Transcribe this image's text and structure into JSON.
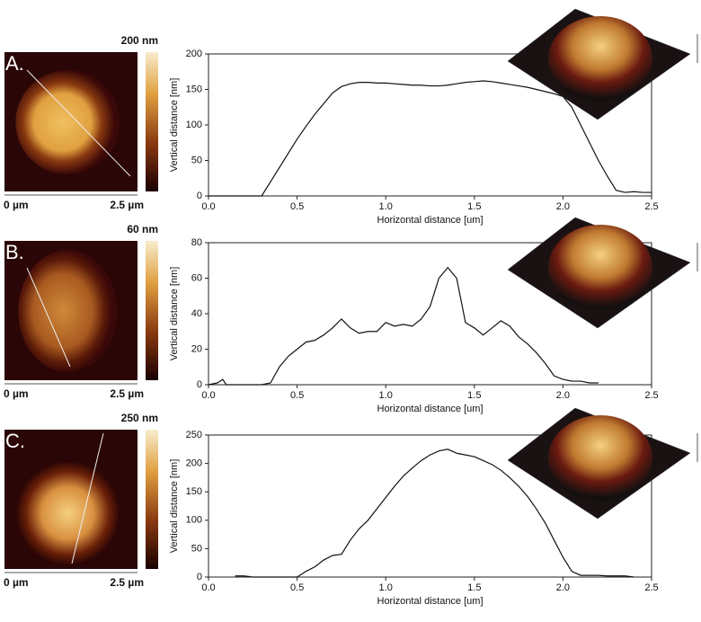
{
  "chart_data": [
    {
      "type": "line",
      "panel_label": "A.",
      "scale_max_label": "200 nm",
      "scale_x_labels": [
        "0 µm",
        "2.5 µm"
      ],
      "x_label": "Horizontal distance [um]",
      "y_label": "Vertical distance [nm]",
      "xlim": [
        0,
        2.5
      ],
      "ylim": [
        0,
        200
      ],
      "xticks": [
        {
          "value": 0,
          "label": "0.0"
        },
        0.5,
        {
          "value": 1,
          "label": "1.0"
        },
        1.5,
        {
          "value": 2,
          "label": "2.0"
        },
        2.5
      ],
      "yticks": [
        0,
        50,
        100,
        150,
        200
      ],
      "x": [
        0,
        0.05,
        0.1,
        0.15,
        0.2,
        0.25,
        0.3,
        0.35,
        0.4,
        0.45,
        0.5,
        0.55,
        0.6,
        0.65,
        0.7,
        0.75,
        0.8,
        0.85,
        0.9,
        0.95,
        1,
        1.05,
        1.1,
        1.15,
        1.2,
        1.25,
        1.3,
        1.35,
        1.4,
        1.45,
        1.5,
        1.55,
        1.6,
        1.65,
        1.7,
        1.75,
        1.8,
        1.85,
        1.9,
        1.95,
        2,
        2.05,
        2.1,
        2.15,
        2.2,
        2.25,
        2.3,
        2.35,
        2.4,
        2.45,
        2.5
      ],
      "series": [
        {
          "color": "#111111",
          "values": [
            0,
            0,
            0,
            0,
            0,
            0,
            0,
            20,
            40,
            60,
            80,
            98,
            115,
            130,
            145,
            154,
            158,
            160,
            160,
            159,
            159,
            158,
            157,
            156,
            156,
            155,
            155,
            156,
            158,
            160,
            161,
            162,
            161,
            159,
            157,
            155,
            153,
            150,
            147,
            144,
            140,
            125,
            100,
            75,
            50,
            28,
            8,
            5,
            6,
            5,
            5
          ]
        }
      ]
    },
    {
      "type": "line",
      "panel_label": "B.",
      "scale_max_label": "60 nm",
      "scale_x_labels": [
        "0 µm",
        "2.5 µm"
      ],
      "x_label": "Horizontal distance [um]",
      "y_label": "Vertical distance [nm]",
      "xlim": [
        0,
        2.5
      ],
      "ylim": [
        0,
        80
      ],
      "xticks": [
        {
          "value": 0,
          "label": "0.0"
        },
        0.5,
        {
          "value": 1,
          "label": "1.0"
        },
        1.5,
        {
          "value": 2,
          "label": "2.0"
        },
        2.5
      ],
      "yticks": [
        0,
        20,
        40,
        60,
        80
      ],
      "x": [
        0,
        0.05,
        0.08,
        0.1,
        0.15,
        0.2,
        0.25,
        0.3,
        0.35,
        0.4,
        0.45,
        0.5,
        0.55,
        0.6,
        0.65,
        0.7,
        0.75,
        0.8,
        0.85,
        0.9,
        0.95,
        1,
        1.05,
        1.1,
        1.15,
        1.2,
        1.25,
        1.3,
        1.35,
        1.4,
        1.45,
        1.5,
        1.55,
        1.6,
        1.65,
        1.7,
        1.75,
        1.8,
        1.85,
        1.9,
        1.95,
        2,
        2.05,
        2.1,
        2.15,
        2.2
      ],
      "series": [
        {
          "color": "#111111",
          "values": [
            0,
            1,
            3,
            0,
            0,
            0,
            0,
            0,
            1,
            10,
            16,
            20,
            24,
            25,
            28,
            32,
            37,
            32,
            29,
            30,
            30,
            35,
            33,
            34,
            33,
            37,
            44,
            60,
            66,
            60,
            35,
            32,
            28,
            32,
            36,
            33,
            27,
            23,
            18,
            12,
            5,
            3,
            2,
            2,
            1,
            1
          ]
        }
      ]
    },
    {
      "type": "line",
      "panel_label": "C.",
      "scale_max_label": "250 nm",
      "scale_x_labels": [
        "0 µm",
        "2.5 µm"
      ],
      "x_label": "Horizontal distance [um]",
      "y_label": "Vertical distance [nm]",
      "xlim": [
        0,
        2.5
      ],
      "ylim": [
        0,
        250
      ],
      "xticks": [
        {
          "value": 0,
          "label": "0.0"
        },
        0.5,
        {
          "value": 1,
          "label": "1.0"
        },
        1.5,
        {
          "value": 2,
          "label": "2.0"
        },
        2.5
      ],
      "yticks": [
        0,
        50,
        100,
        150,
        200,
        250
      ],
      "x": [
        0.15,
        0.2,
        0.25,
        0.3,
        0.35,
        0.4,
        0.45,
        0.5,
        0.55,
        0.6,
        0.65,
        0.7,
        0.75,
        0.8,
        0.85,
        0.9,
        0.95,
        1,
        1.05,
        1.1,
        1.15,
        1.2,
        1.25,
        1.3,
        1.35,
        1.4,
        1.45,
        1.5,
        1.55,
        1.6,
        1.65,
        1.7,
        1.75,
        1.8,
        1.85,
        1.9,
        1.95,
        2,
        2.05,
        2.1,
        2.15,
        2.2,
        2.25,
        2.3,
        2.35,
        2.4
      ],
      "series": [
        {
          "color": "#111111",
          "values": [
            2,
            2,
            0,
            0,
            0,
            0,
            0,
            0,
            10,
            18,
            30,
            38,
            40,
            65,
            85,
            100,
            120,
            140,
            160,
            178,
            192,
            205,
            215,
            222,
            225,
            218,
            215,
            212,
            205,
            198,
            188,
            175,
            160,
            142,
            120,
            95,
            65,
            35,
            10,
            3,
            3,
            3,
            2,
            2,
            2,
            0
          ]
        }
      ]
    }
  ]
}
